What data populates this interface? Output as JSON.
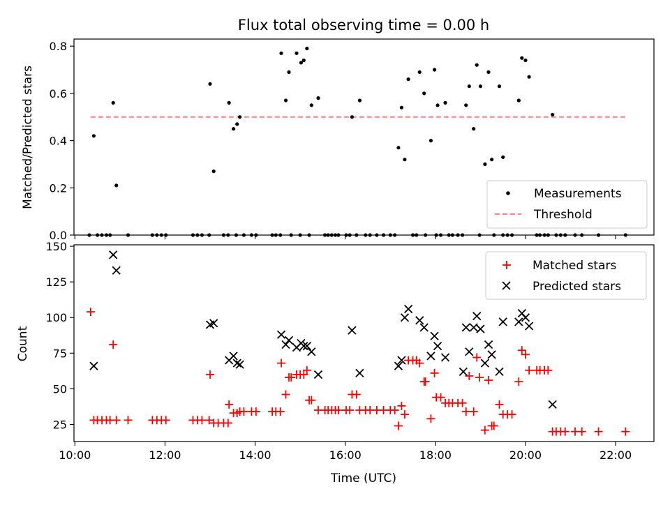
{
  "title": "Flux total observing time = 0.00 h",
  "colors": {
    "measurements": "#000000",
    "threshold": "#ff7f7f",
    "matched": "#ff0000",
    "predicted": "#000000"
  },
  "chart_data": [
    {
      "type": "scatter",
      "ylabel": "Matched/Predicted stars",
      "xlim": [
        9.98,
        22.85
      ],
      "ylim": [
        0,
        0.83
      ],
      "yticks": [
        "0.0",
        "0.2",
        "0.4",
        "0.6",
        "0.8"
      ],
      "ytick_values": [
        0,
        0.2,
        0.4,
        0.6,
        0.8
      ],
      "legend_position": "lower-right",
      "legend": [
        "Measurements",
        "Threshold"
      ],
      "threshold": {
        "name": "Threshold",
        "y": 0.5,
        "x_range": [
          10.35,
          22.25
        ]
      },
      "series": [
        {
          "name": "Measurements",
          "points": [
            [
              10.42,
              0.42
            ],
            [
              10.85,
              0.56
            ],
            [
              10.92,
              0.21
            ],
            [
              13.0,
              0.64
            ],
            [
              13.08,
              0.27
            ],
            [
              13.42,
              0.56
            ],
            [
              13.52,
              0.45
            ],
            [
              13.6,
              0.47
            ],
            [
              13.66,
              0.5
            ],
            [
              14.58,
              0.77
            ],
            [
              14.68,
              0.57
            ],
            [
              14.75,
              0.69
            ],
            [
              14.92,
              0.77
            ],
            [
              15.02,
              0.73
            ],
            [
              15.08,
              0.74
            ],
            [
              15.15,
              0.79
            ],
            [
              15.25,
              0.55
            ],
            [
              15.4,
              0.58
            ],
            [
              16.15,
              0.5
            ],
            [
              16.32,
              0.57
            ],
            [
              17.18,
              0.37
            ],
            [
              17.25,
              0.54
            ],
            [
              17.32,
              0.32
            ],
            [
              17.4,
              0.66
            ],
            [
              17.65,
              0.69
            ],
            [
              17.75,
              0.6
            ],
            [
              17.9,
              0.4
            ],
            [
              17.98,
              0.7
            ],
            [
              18.05,
              0.55
            ],
            [
              18.22,
              0.56
            ],
            [
              18.68,
              0.55
            ],
            [
              18.75,
              0.63
            ],
            [
              18.85,
              0.45
            ],
            [
              18.92,
              0.72
            ],
            [
              19.0,
              0.63
            ],
            [
              19.1,
              0.3
            ],
            [
              19.18,
              0.69
            ],
            [
              19.25,
              0.32
            ],
            [
              19.42,
              0.63
            ],
            [
              19.5,
              0.33
            ],
            [
              19.85,
              0.57
            ],
            [
              19.92,
              0.75
            ],
            [
              20.0,
              0.74
            ],
            [
              20.08,
              0.67
            ],
            [
              20.6,
              0.51
            ],
            [
              10.32,
              0
            ],
            [
              10.5,
              0
            ],
            [
              10.6,
              0
            ],
            [
              10.7,
              0
            ],
            [
              10.78,
              0
            ],
            [
              11.18,
              0
            ],
            [
              11.72,
              0
            ],
            [
              11.82,
              0
            ],
            [
              11.92,
              0
            ],
            [
              12.02,
              0
            ],
            [
              12.62,
              0
            ],
            [
              12.72,
              0
            ],
            [
              12.82,
              0
            ],
            [
              12.98,
              0
            ],
            [
              13.3,
              0
            ],
            [
              13.4,
              0
            ],
            [
              13.58,
              0
            ],
            [
              13.75,
              0
            ],
            [
              13.92,
              0
            ],
            [
              14.02,
              0
            ],
            [
              14.38,
              0
            ],
            [
              14.46,
              0
            ],
            [
              14.56,
              0
            ],
            [
              14.8,
              0
            ],
            [
              15.0,
              0
            ],
            [
              15.2,
              0
            ],
            [
              15.55,
              0
            ],
            [
              15.62,
              0
            ],
            [
              15.7,
              0
            ],
            [
              15.78,
              0
            ],
            [
              15.85,
              0
            ],
            [
              16.02,
              0
            ],
            [
              16.1,
              0
            ],
            [
              16.25,
              0
            ],
            [
              16.45,
              0
            ],
            [
              16.55,
              0
            ],
            [
              16.7,
              0
            ],
            [
              16.85,
              0
            ],
            [
              17.0,
              0
            ],
            [
              17.1,
              0
            ],
            [
              17.5,
              0
            ],
            [
              17.58,
              0
            ],
            [
              17.78,
              0
            ],
            [
              18.02,
              0
            ],
            [
              18.12,
              0
            ],
            [
              18.3,
              0
            ],
            [
              18.38,
              0
            ],
            [
              18.5,
              0
            ],
            [
              18.6,
              0
            ],
            [
              18.98,
              0
            ],
            [
              19.3,
              0
            ],
            [
              19.5,
              0
            ],
            [
              19.6,
              0
            ],
            [
              19.7,
              0
            ],
            [
              20.25,
              0
            ],
            [
              20.32,
              0
            ],
            [
              20.42,
              0
            ],
            [
              20.5,
              0
            ],
            [
              20.68,
              0
            ],
            [
              20.78,
              0
            ],
            [
              20.88,
              0
            ],
            [
              21.1,
              0
            ],
            [
              21.25,
              0
            ],
            [
              21.62,
              0
            ],
            [
              22.22,
              0
            ]
          ]
        }
      ]
    },
    {
      "type": "scatter",
      "xlabel": "Time (UTC)",
      "ylabel": "Count",
      "xlim": [
        9.98,
        22.85
      ],
      "ylim": [
        13,
        151
      ],
      "xticks": [
        "10:00",
        "12:00",
        "14:00",
        "16:00",
        "18:00",
        "20:00",
        "22:00"
      ],
      "xtick_values": [
        10,
        12,
        14,
        16,
        18,
        20,
        22
      ],
      "yticks": [
        "25",
        "50",
        "75",
        "100",
        "125",
        "150"
      ],
      "ytick_values": [
        25,
        50,
        75,
        100,
        125,
        150
      ],
      "legend_position": "upper-right",
      "legend": [
        "Matched stars",
        "Predicted stars"
      ],
      "series": [
        {
          "name": "Matched stars",
          "marker": "+",
          "points": [
            [
              10.35,
              104
            ],
            [
              10.42,
              28
            ],
            [
              10.5,
              28
            ],
            [
              10.6,
              28
            ],
            [
              10.7,
              28
            ],
            [
              10.78,
              28
            ],
            [
              10.85,
              81
            ],
            [
              10.92,
              28
            ],
            [
              11.18,
              28
            ],
            [
              11.72,
              28
            ],
            [
              11.82,
              28
            ],
            [
              11.92,
              28
            ],
            [
              12.02,
              28
            ],
            [
              12.62,
              28
            ],
            [
              12.72,
              28
            ],
            [
              12.82,
              28
            ],
            [
              12.98,
              28
            ],
            [
              13.0,
              60
            ],
            [
              13.08,
              26
            ],
            [
              13.18,
              26
            ],
            [
              13.3,
              26
            ],
            [
              13.4,
              26
            ],
            [
              13.42,
              39
            ],
            [
              13.52,
              33
            ],
            [
              13.6,
              33
            ],
            [
              13.66,
              34
            ],
            [
              13.75,
              34
            ],
            [
              13.92,
              34
            ],
            [
              14.02,
              34
            ],
            [
              14.38,
              34
            ],
            [
              14.46,
              34
            ],
            [
              14.56,
              34
            ],
            [
              14.58,
              68
            ],
            [
              14.68,
              46
            ],
            [
              14.75,
              58
            ],
            [
              14.8,
              58
            ],
            [
              14.92,
              60
            ],
            [
              15.0,
              60
            ],
            [
              15.08,
              60
            ],
            [
              15.15,
              63
            ],
            [
              15.2,
              42
            ],
            [
              15.25,
              42
            ],
            [
              15.4,
              35
            ],
            [
              15.55,
              35
            ],
            [
              15.62,
              35
            ],
            [
              15.7,
              35
            ],
            [
              15.78,
              35
            ],
            [
              15.85,
              35
            ],
            [
              16.02,
              35
            ],
            [
              16.1,
              35
            ],
            [
              16.15,
              46
            ],
            [
              16.25,
              46
            ],
            [
              16.32,
              35
            ],
            [
              16.45,
              35
            ],
            [
              16.55,
              35
            ],
            [
              16.7,
              35
            ],
            [
              16.85,
              35
            ],
            [
              17.0,
              35
            ],
            [
              17.1,
              35
            ],
            [
              17.18,
              24
            ],
            [
              17.25,
              38
            ],
            [
              17.32,
              32
            ],
            [
              17.4,
              70
            ],
            [
              17.5,
              70
            ],
            [
              17.58,
              70
            ],
            [
              17.65,
              68
            ],
            [
              17.75,
              55
            ],
            [
              17.78,
              55
            ],
            [
              17.9,
              29
            ],
            [
              17.98,
              61
            ],
            [
              18.02,
              44
            ],
            [
              18.12,
              44
            ],
            [
              18.22,
              40
            ],
            [
              18.3,
              40
            ],
            [
              18.38,
              40
            ],
            [
              18.5,
              40
            ],
            [
              18.6,
              40
            ],
            [
              18.68,
              34
            ],
            [
              18.75,
              59
            ],
            [
              18.85,
              34
            ],
            [
              18.92,
              72
            ],
            [
              18.98,
              58
            ],
            [
              19.1,
              21
            ],
            [
              19.18,
              56
            ],
            [
              19.25,
              24
            ],
            [
              19.3,
              24
            ],
            [
              19.42,
              39
            ],
            [
              19.5,
              32
            ],
            [
              19.6,
              32
            ],
            [
              19.7,
              32
            ],
            [
              19.85,
              55
            ],
            [
              19.92,
              77
            ],
            [
              20.0,
              74
            ],
            [
              20.08,
              63
            ],
            [
              20.25,
              63
            ],
            [
              20.32,
              63
            ],
            [
              20.42,
              63
            ],
            [
              20.5,
              63
            ],
            [
              20.6,
              20
            ],
            [
              20.68,
              20
            ],
            [
              20.78,
              20
            ],
            [
              20.88,
              20
            ],
            [
              21.1,
              20
            ],
            [
              21.25,
              20
            ],
            [
              21.62,
              20
            ],
            [
              22.22,
              20
            ]
          ]
        },
        {
          "name": "Predicted stars",
          "marker": "x",
          "points": [
            [
              10.42,
              66
            ],
            [
              10.85,
              144
            ],
            [
              10.92,
              133
            ],
            [
              13.0,
              95
            ],
            [
              13.08,
              96
            ],
            [
              13.42,
              70
            ],
            [
              13.52,
              73
            ],
            [
              13.6,
              68
            ],
            [
              13.66,
              67
            ],
            [
              14.58,
              88
            ],
            [
              14.68,
              81
            ],
            [
              14.75,
              84
            ],
            [
              14.92,
              79
            ],
            [
              15.02,
              82
            ],
            [
              15.08,
              80
            ],
            [
              15.15,
              80
            ],
            [
              15.25,
              76
            ],
            [
              15.4,
              60
            ],
            [
              16.15,
              91
            ],
            [
              16.32,
              61
            ],
            [
              17.18,
              66
            ],
            [
              17.25,
              70
            ],
            [
              17.32,
              100
            ],
            [
              17.4,
              106
            ],
            [
              17.65,
              98
            ],
            [
              17.75,
              93
            ],
            [
              17.9,
              73
            ],
            [
              17.98,
              87
            ],
            [
              18.05,
              80
            ],
            [
              18.22,
              72
            ],
            [
              18.62,
              62
            ],
            [
              18.68,
              93
            ],
            [
              18.75,
              76
            ],
            [
              18.85,
              93
            ],
            [
              18.92,
              101
            ],
            [
              19.0,
              92
            ],
            [
              19.1,
              68
            ],
            [
              19.18,
              81
            ],
            [
              19.25,
              74
            ],
            [
              19.42,
              62
            ],
            [
              19.5,
              97
            ],
            [
              19.85,
              97
            ],
            [
              19.92,
              103
            ],
            [
              20.0,
              100
            ],
            [
              20.08,
              94
            ],
            [
              20.6,
              39
            ]
          ]
        }
      ]
    }
  ]
}
